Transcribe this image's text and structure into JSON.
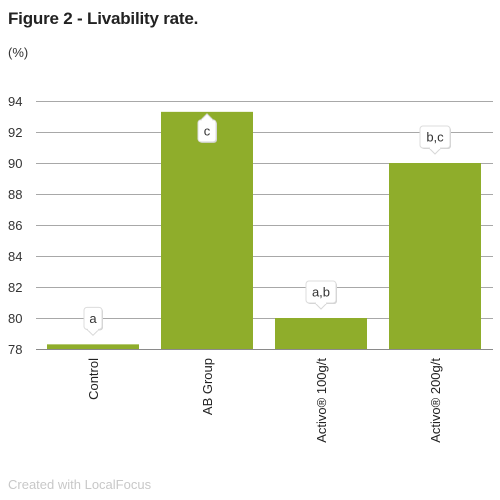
{
  "chart_data": {
    "type": "bar",
    "title": "Figure 2 - Livability rate.",
    "unit_label": "(%)",
    "categories": [
      "Control",
      "AB Group",
      "Activo® 100g/t",
      "Activo® 200g/t"
    ],
    "values": [
      78.3,
      93.3,
      80.0,
      90.0
    ],
    "annotations": [
      "a",
      "c",
      "a,b",
      "b,c"
    ],
    "ylim": [
      78,
      94
    ],
    "yticks": [
      78,
      80,
      82,
      84,
      86,
      88,
      90,
      92,
      94
    ],
    "grid": true,
    "bar_color": "#8fad2b"
  },
  "footer": {
    "credit": "Created with LocalFocus"
  }
}
